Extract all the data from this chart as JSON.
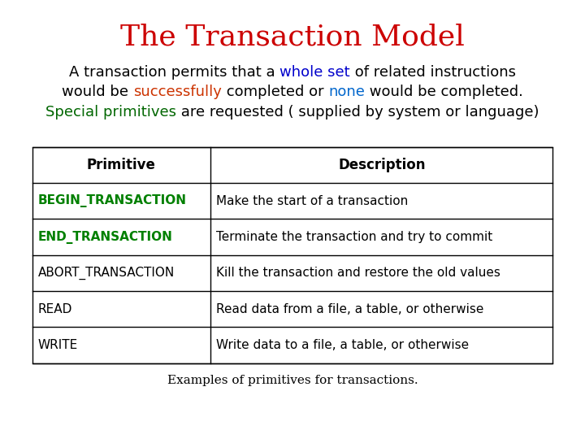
{
  "title": "The Transaction Model",
  "title_color": "#cc0000",
  "title_fontsize": 26,
  "subtitle_lines": [
    {
      "segments": [
        {
          "text": "A transaction permits that a ",
          "color": "#000000"
        },
        {
          "text": "whole set",
          "color": "#0000cc"
        },
        {
          "text": " of related instructions",
          "color": "#000000"
        }
      ]
    },
    {
      "segments": [
        {
          "text": "would be ",
          "color": "#000000"
        },
        {
          "text": "successfully",
          "color": "#cc3300"
        },
        {
          "text": " completed or ",
          "color": "#000000"
        },
        {
          "text": "none",
          "color": "#0066cc"
        },
        {
          "text": " would be completed.",
          "color": "#000000"
        }
      ]
    },
    {
      "segments": [
        {
          "text": "Special primitives",
          "color": "#006600"
        },
        {
          "text": " are requested ( supplied by system or language)",
          "color": "#000000"
        }
      ]
    }
  ],
  "subtitle_fontsize": 13,
  "table_headers": [
    "Primitive",
    "Description"
  ],
  "table_rows": [
    {
      "primitive": "BEGIN_TRANSACTION",
      "description": "Make the start of a transaction",
      "green": true
    },
    {
      "primitive": "END_TRANSACTION",
      "description": "Terminate the transaction and try to commit",
      "green": true
    },
    {
      "primitive": "ABORT_TRANSACTION",
      "description": "Kill the transaction and restore the old values",
      "green": false
    },
    {
      "primitive": "READ",
      "description": "Read data from a file, a table, or otherwise",
      "green": false
    },
    {
      "primitive": "WRITE",
      "description": "Write data to a file, a table, or otherwise",
      "green": false
    }
  ],
  "caption": "Examples of primitives for transactions.",
  "background_color": "#ffffff",
  "table_border_color": "#000000",
  "green_color": "#008000",
  "table_fontsize": 11,
  "header_fontsize": 12
}
